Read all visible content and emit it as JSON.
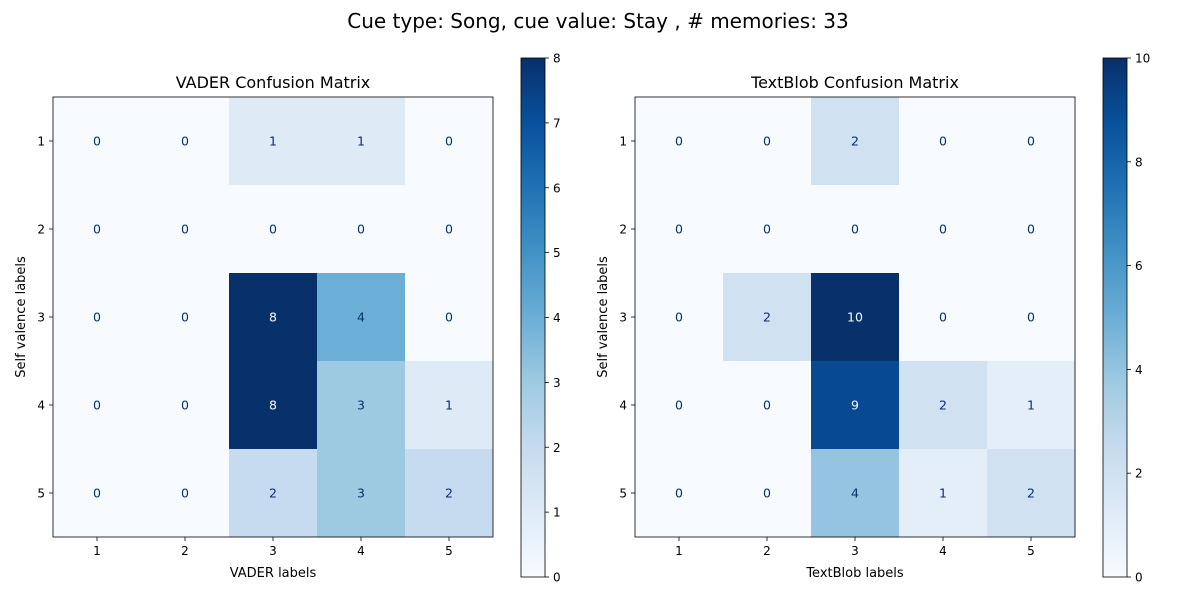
{
  "figure": {
    "title": "Cue type: Song, cue value: Stay , # memories: 33"
  },
  "chart_data": [
    {
      "type": "heatmap",
      "title": "VADER Confusion Matrix",
      "xlabel": "VADER labels",
      "ylabel": "Self valence labels",
      "x_categories": [
        "1",
        "2",
        "3",
        "4",
        "5"
      ],
      "y_categories": [
        "1",
        "2",
        "3",
        "4",
        "5"
      ],
      "values": [
        [
          0,
          0,
          1,
          1,
          0
        ],
        [
          0,
          0,
          0,
          0,
          0
        ],
        [
          0,
          0,
          8,
          4,
          0
        ],
        [
          0,
          0,
          8,
          3,
          1
        ],
        [
          0,
          0,
          2,
          3,
          2
        ]
      ],
      "colormap": "Blues",
      "colorbar": {
        "min": 0,
        "max": 8,
        "ticks": [
          "0",
          "1",
          "2",
          "3",
          "4",
          "5",
          "6",
          "7",
          "8"
        ]
      }
    },
    {
      "type": "heatmap",
      "title": "TextBlob Confusion Matrix",
      "xlabel": "TextBlob labels",
      "ylabel": "Self valence labels",
      "x_categories": [
        "1",
        "2",
        "3",
        "4",
        "5"
      ],
      "y_categories": [
        "1",
        "2",
        "3",
        "4",
        "5"
      ],
      "values": [
        [
          0,
          0,
          2,
          0,
          0
        ],
        [
          0,
          0,
          0,
          0,
          0
        ],
        [
          0,
          2,
          10,
          0,
          0
        ],
        [
          0,
          0,
          9,
          2,
          1
        ],
        [
          0,
          0,
          4,
          1,
          2
        ]
      ],
      "colormap": "Blues",
      "colorbar": {
        "min": 0,
        "max": 10,
        "ticks": [
          "0",
          "2",
          "4",
          "6",
          "8",
          "10"
        ]
      }
    }
  ]
}
